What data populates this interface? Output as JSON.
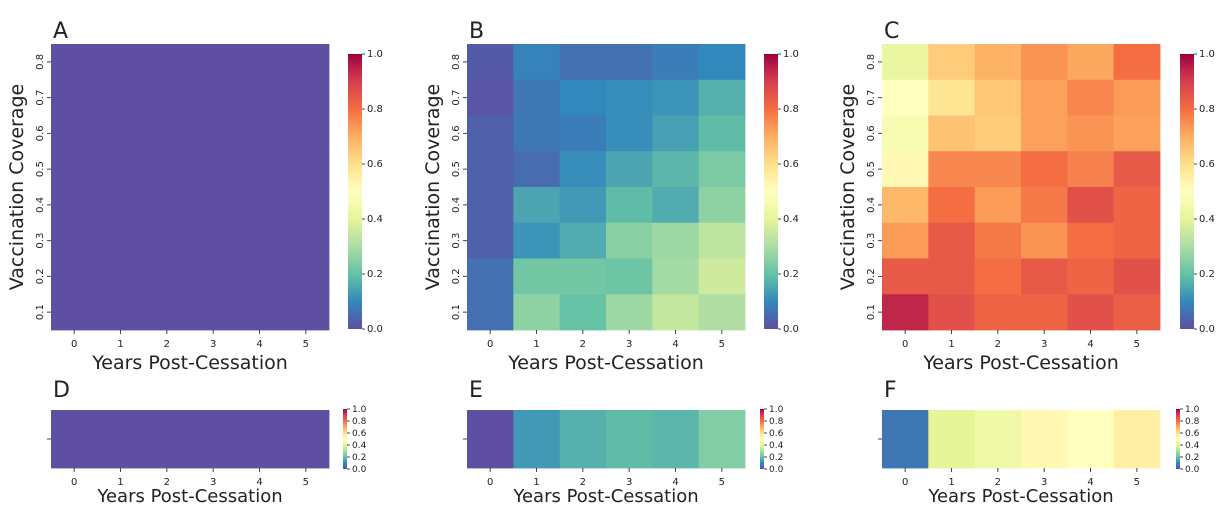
{
  "chart_data": [
    {
      "panel": "A",
      "type": "heatmap",
      "xlabel": "Years Post-Cessation",
      "ylabel": "Vaccination Coverage",
      "x": [
        "0",
        "1",
        "2",
        "3",
        "4",
        "5"
      ],
      "y": [
        "0.8",
        "0.7",
        "0.6",
        "0.5",
        "0.4",
        "0.3",
        "0.2",
        "0.1"
      ],
      "values": [
        [
          0.0,
          0.0,
          0.0,
          0.0,
          0.0,
          0.0
        ],
        [
          0.0,
          0.0,
          0.0,
          0.0,
          0.0,
          0.0
        ],
        [
          0.0,
          0.0,
          0.0,
          0.0,
          0.0,
          0.0
        ],
        [
          0.0,
          0.0,
          0.0,
          0.0,
          0.0,
          0.0
        ],
        [
          0.0,
          0.0,
          0.0,
          0.0,
          0.0,
          0.0
        ],
        [
          0.0,
          0.0,
          0.0,
          0.0,
          0.0,
          0.0
        ],
        [
          0.0,
          0.0,
          0.0,
          0.0,
          0.0,
          0.0
        ],
        [
          0.0,
          0.0,
          0.0,
          0.0,
          0.0,
          0.0
        ]
      ],
      "colorbar_ticks": [
        "0.0",
        "0.2",
        "0.4",
        "0.6",
        "0.8",
        "1.0"
      ],
      "vmin": 0,
      "vmax": 1
    },
    {
      "panel": "B",
      "type": "heatmap",
      "xlabel": "Years Post-Cessation",
      "ylabel": "Vaccination Coverage",
      "x": [
        "0",
        "1",
        "2",
        "3",
        "4",
        "5"
      ],
      "y": [
        "0.8",
        "0.7",
        "0.6",
        "0.5",
        "0.4",
        "0.3",
        "0.2",
        "0.1"
      ],
      "values": [
        [
          0.02,
          0.09,
          0.06,
          0.06,
          0.08,
          0.1
        ],
        [
          0.01,
          0.07,
          0.1,
          0.11,
          0.12,
          0.17
        ],
        [
          0.03,
          0.07,
          0.08,
          0.11,
          0.14,
          0.19
        ],
        [
          0.03,
          0.05,
          0.11,
          0.15,
          0.18,
          0.23
        ],
        [
          0.03,
          0.15,
          0.13,
          0.19,
          0.16,
          0.26
        ],
        [
          0.03,
          0.12,
          0.16,
          0.25,
          0.28,
          0.33
        ],
        [
          0.06,
          0.22,
          0.22,
          0.21,
          0.29,
          0.36
        ],
        [
          0.06,
          0.26,
          0.2,
          0.28,
          0.34,
          0.31
        ]
      ],
      "colorbar_ticks": [
        "0.0",
        "0.2",
        "0.4",
        "0.6",
        "0.8",
        "1.0"
      ],
      "vmin": 0,
      "vmax": 1
    },
    {
      "panel": "C",
      "type": "heatmap",
      "xlabel": "Years Post-Cessation",
      "ylabel": "Vaccination Coverage",
      "x": [
        "0",
        "1",
        "2",
        "3",
        "4",
        "5"
      ],
      "y": [
        "0.8",
        "0.7",
        "0.6",
        "0.5",
        "0.4",
        "0.3",
        "0.2",
        "0.1"
      ],
      "values": [
        [
          0.42,
          0.64,
          0.69,
          0.74,
          0.71,
          0.8
        ],
        [
          0.5,
          0.58,
          0.65,
          0.72,
          0.76,
          0.73
        ],
        [
          0.47,
          0.66,
          0.64,
          0.72,
          0.74,
          0.72
        ],
        [
          0.52,
          0.76,
          0.76,
          0.8,
          0.77,
          0.84
        ],
        [
          0.68,
          0.8,
          0.73,
          0.78,
          0.86,
          0.82
        ],
        [
          0.73,
          0.84,
          0.78,
          0.74,
          0.8,
          0.82
        ],
        [
          0.84,
          0.84,
          0.8,
          0.84,
          0.82,
          0.86
        ],
        [
          0.94,
          0.86,
          0.82,
          0.82,
          0.86,
          0.83
        ]
      ],
      "colorbar_ticks": [
        "0.0",
        "0.2",
        "0.4",
        "0.6",
        "0.8",
        "1.0"
      ],
      "vmin": 0,
      "vmax": 1
    },
    {
      "panel": "D",
      "type": "heatmap",
      "xlabel": "Years Post-Cessation",
      "ylabel": "",
      "x": [
        "0",
        "1",
        "2",
        "3",
        "4",
        "5"
      ],
      "values": [
        0.0,
        0.0,
        0.0,
        0.0,
        0.0,
        0.0
      ],
      "colorbar_ticks": [
        "0.0",
        "0.2",
        "0.4",
        "0.6",
        "0.8",
        "1.0"
      ],
      "vmin": 0,
      "vmax": 1
    },
    {
      "panel": "E",
      "type": "heatmap",
      "xlabel": "Years Post-Cessation",
      "ylabel": "",
      "x": [
        "0",
        "1",
        "2",
        "3",
        "4",
        "5"
      ],
      "values": [
        0.0,
        0.13,
        0.17,
        0.19,
        0.18,
        0.24
      ],
      "colorbar_ticks": [
        "0.0",
        "0.2",
        "0.4",
        "0.6",
        "0.8",
        "1.0"
      ],
      "vmin": 0,
      "vmax": 1
    },
    {
      "panel": "F",
      "type": "heatmap",
      "xlabel": "Years Post-Cessation",
      "ylabel": "",
      "x": [
        "0",
        "1",
        "2",
        "3",
        "4",
        "5"
      ],
      "values": [
        0.07,
        0.4,
        0.44,
        0.52,
        0.5,
        0.55
      ],
      "colorbar_ticks": [
        "0.0",
        "0.2",
        "0.4",
        "0.6",
        "0.8",
        "1.0"
      ],
      "vmin": 0,
      "vmax": 1
    }
  ]
}
